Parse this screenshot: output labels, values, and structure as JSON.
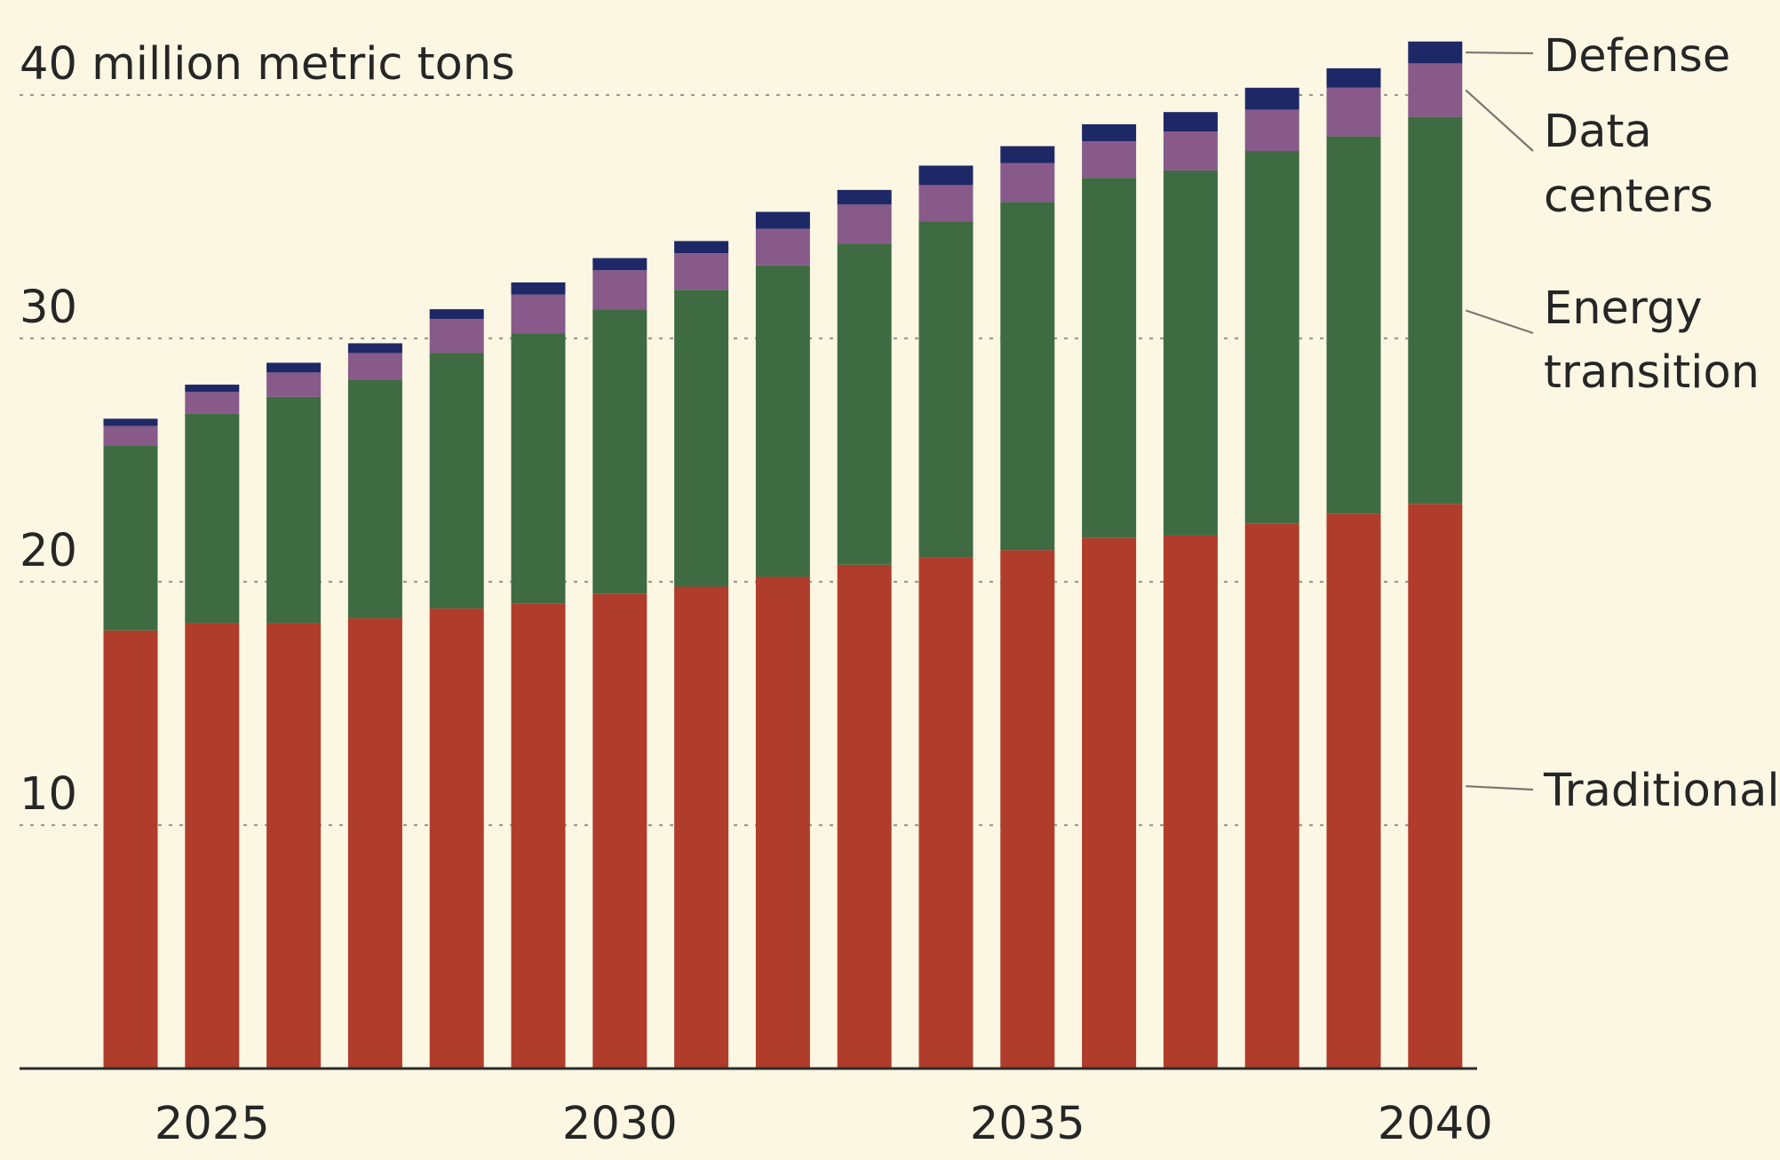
{
  "chart_data": {
    "type": "bar",
    "stacked": true,
    "title": "",
    "ylabel": "40 million metric tons",
    "xlabel": "",
    "ylim": [
      0,
      42
    ],
    "yticks": [
      {
        "value": 10,
        "label": "10"
      },
      {
        "value": 20,
        "label": "20"
      },
      {
        "value": 30,
        "label": "30"
      },
      {
        "value": 40,
        "label": "40 million metric tons"
      }
    ],
    "xticks": [
      {
        "value": 2025,
        "label": "2025"
      },
      {
        "value": 2030,
        "label": "2030"
      },
      {
        "value": 2035,
        "label": "2035"
      },
      {
        "value": 2040,
        "label": "2040"
      }
    ],
    "categories": [
      2024,
      2025,
      2026,
      2027,
      2028,
      2029,
      2030,
      2031,
      2032,
      2033,
      2034,
      2035,
      2036,
      2037,
      2038,
      2039,
      2040
    ],
    "series": [
      {
        "name": "Traditional",
        "color": "#b03c2b",
        "values": [
          18.0,
          18.3,
          18.3,
          18.5,
          18.9,
          19.1,
          19.5,
          19.8,
          20.2,
          20.7,
          21.0,
          21.3,
          21.8,
          21.9,
          22.4,
          22.8,
          23.2
        ]
      },
      {
        "name": "Energy transition",
        "color": "#3f6b42",
        "values": [
          7.6,
          8.6,
          9.3,
          9.8,
          10.5,
          11.1,
          11.7,
          12.2,
          12.8,
          13.2,
          13.8,
          14.3,
          14.8,
          15.0,
          15.3,
          15.5,
          15.9
        ]
      },
      {
        "name": "Data centers",
        "color": "#875a8a",
        "values": [
          0.8,
          0.9,
          1.0,
          1.1,
          1.4,
          1.6,
          1.6,
          1.5,
          1.5,
          1.6,
          1.5,
          1.6,
          1.5,
          1.6,
          1.7,
          2.0,
          2.2
        ]
      },
      {
        "name": "Defense",
        "color": "#1f2866",
        "values": [
          0.3,
          0.3,
          0.4,
          0.4,
          0.4,
          0.5,
          0.5,
          0.5,
          0.7,
          0.6,
          0.8,
          0.7,
          0.7,
          0.8,
          0.9,
          0.8,
          0.9
        ]
      }
    ],
    "legend": {
      "placement": "right",
      "entries": [
        {
          "series": "Defense",
          "lines": [
            "Defense"
          ]
        },
        {
          "series": "Data centers",
          "lines": [
            "Data",
            "centers"
          ]
        },
        {
          "series": "Energy transition",
          "lines": [
            "Energy",
            "transition"
          ]
        },
        {
          "series": "Traditional",
          "lines": [
            "Traditional"
          ]
        }
      ]
    },
    "grid": true,
    "background": "#fcf7e3"
  }
}
